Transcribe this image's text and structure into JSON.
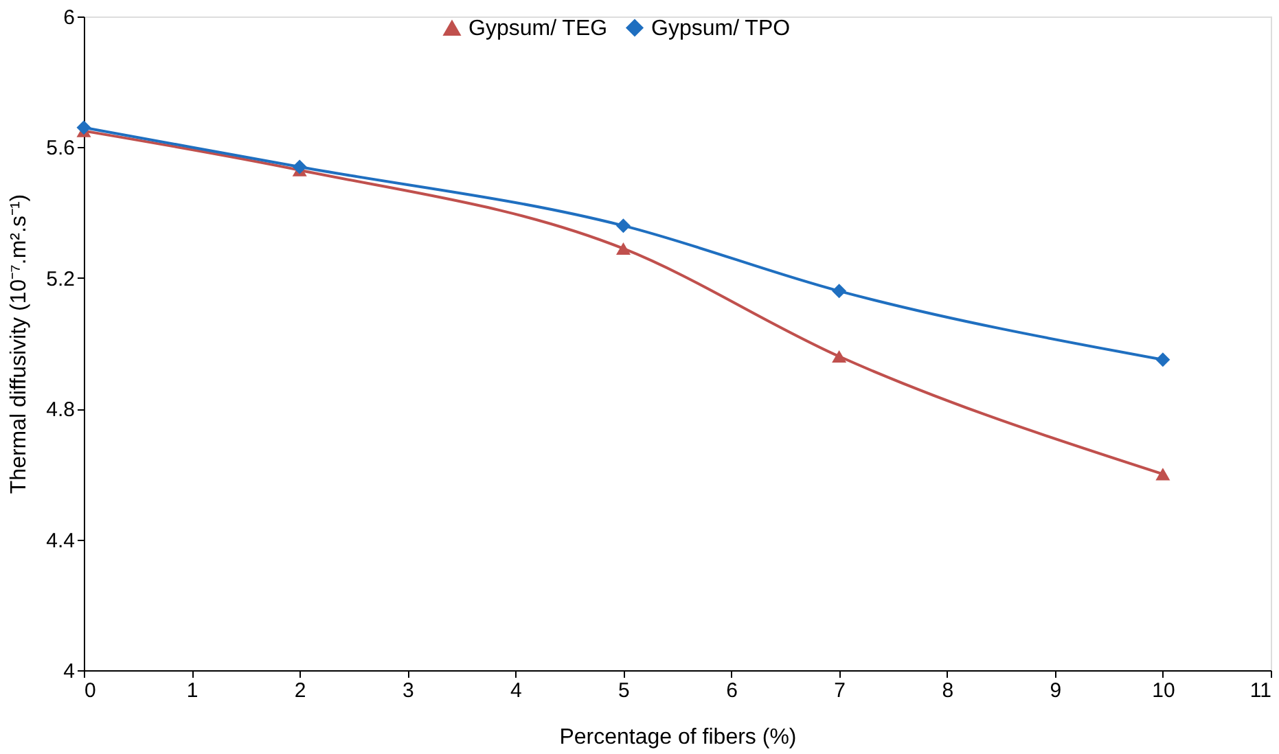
{
  "chart_data": {
    "type": "line",
    "xlabel": "Percentage of fibers (%)",
    "ylabel": "Thermal diffusivity (10⁻⁷.m².s⁻¹)",
    "x": [
      0,
      2,
      5,
      7,
      10
    ],
    "series": [
      {
        "name": "Gypsum/ TEG",
        "color": "#c0504d",
        "marker": "triangle",
        "values": [
          5.65,
          5.53,
          5.29,
          4.96,
          4.6
        ]
      },
      {
        "name": "Gypsum/ TPO",
        "color": "#1f6fc0",
        "marker": "diamond",
        "values": [
          5.66,
          5.54,
          5.36,
          5.16,
          4.95
        ]
      }
    ],
    "xlim": [
      0,
      11
    ],
    "xticks": [
      0,
      1,
      2,
      3,
      4,
      5,
      6,
      7,
      8,
      9,
      10,
      11
    ],
    "ylim": [
      4,
      6
    ],
    "yticks": [
      4,
      4.4,
      4.8,
      5.2,
      5.6,
      6
    ],
    "grid": false,
    "legend": "top",
    "line_style": "solid"
  }
}
